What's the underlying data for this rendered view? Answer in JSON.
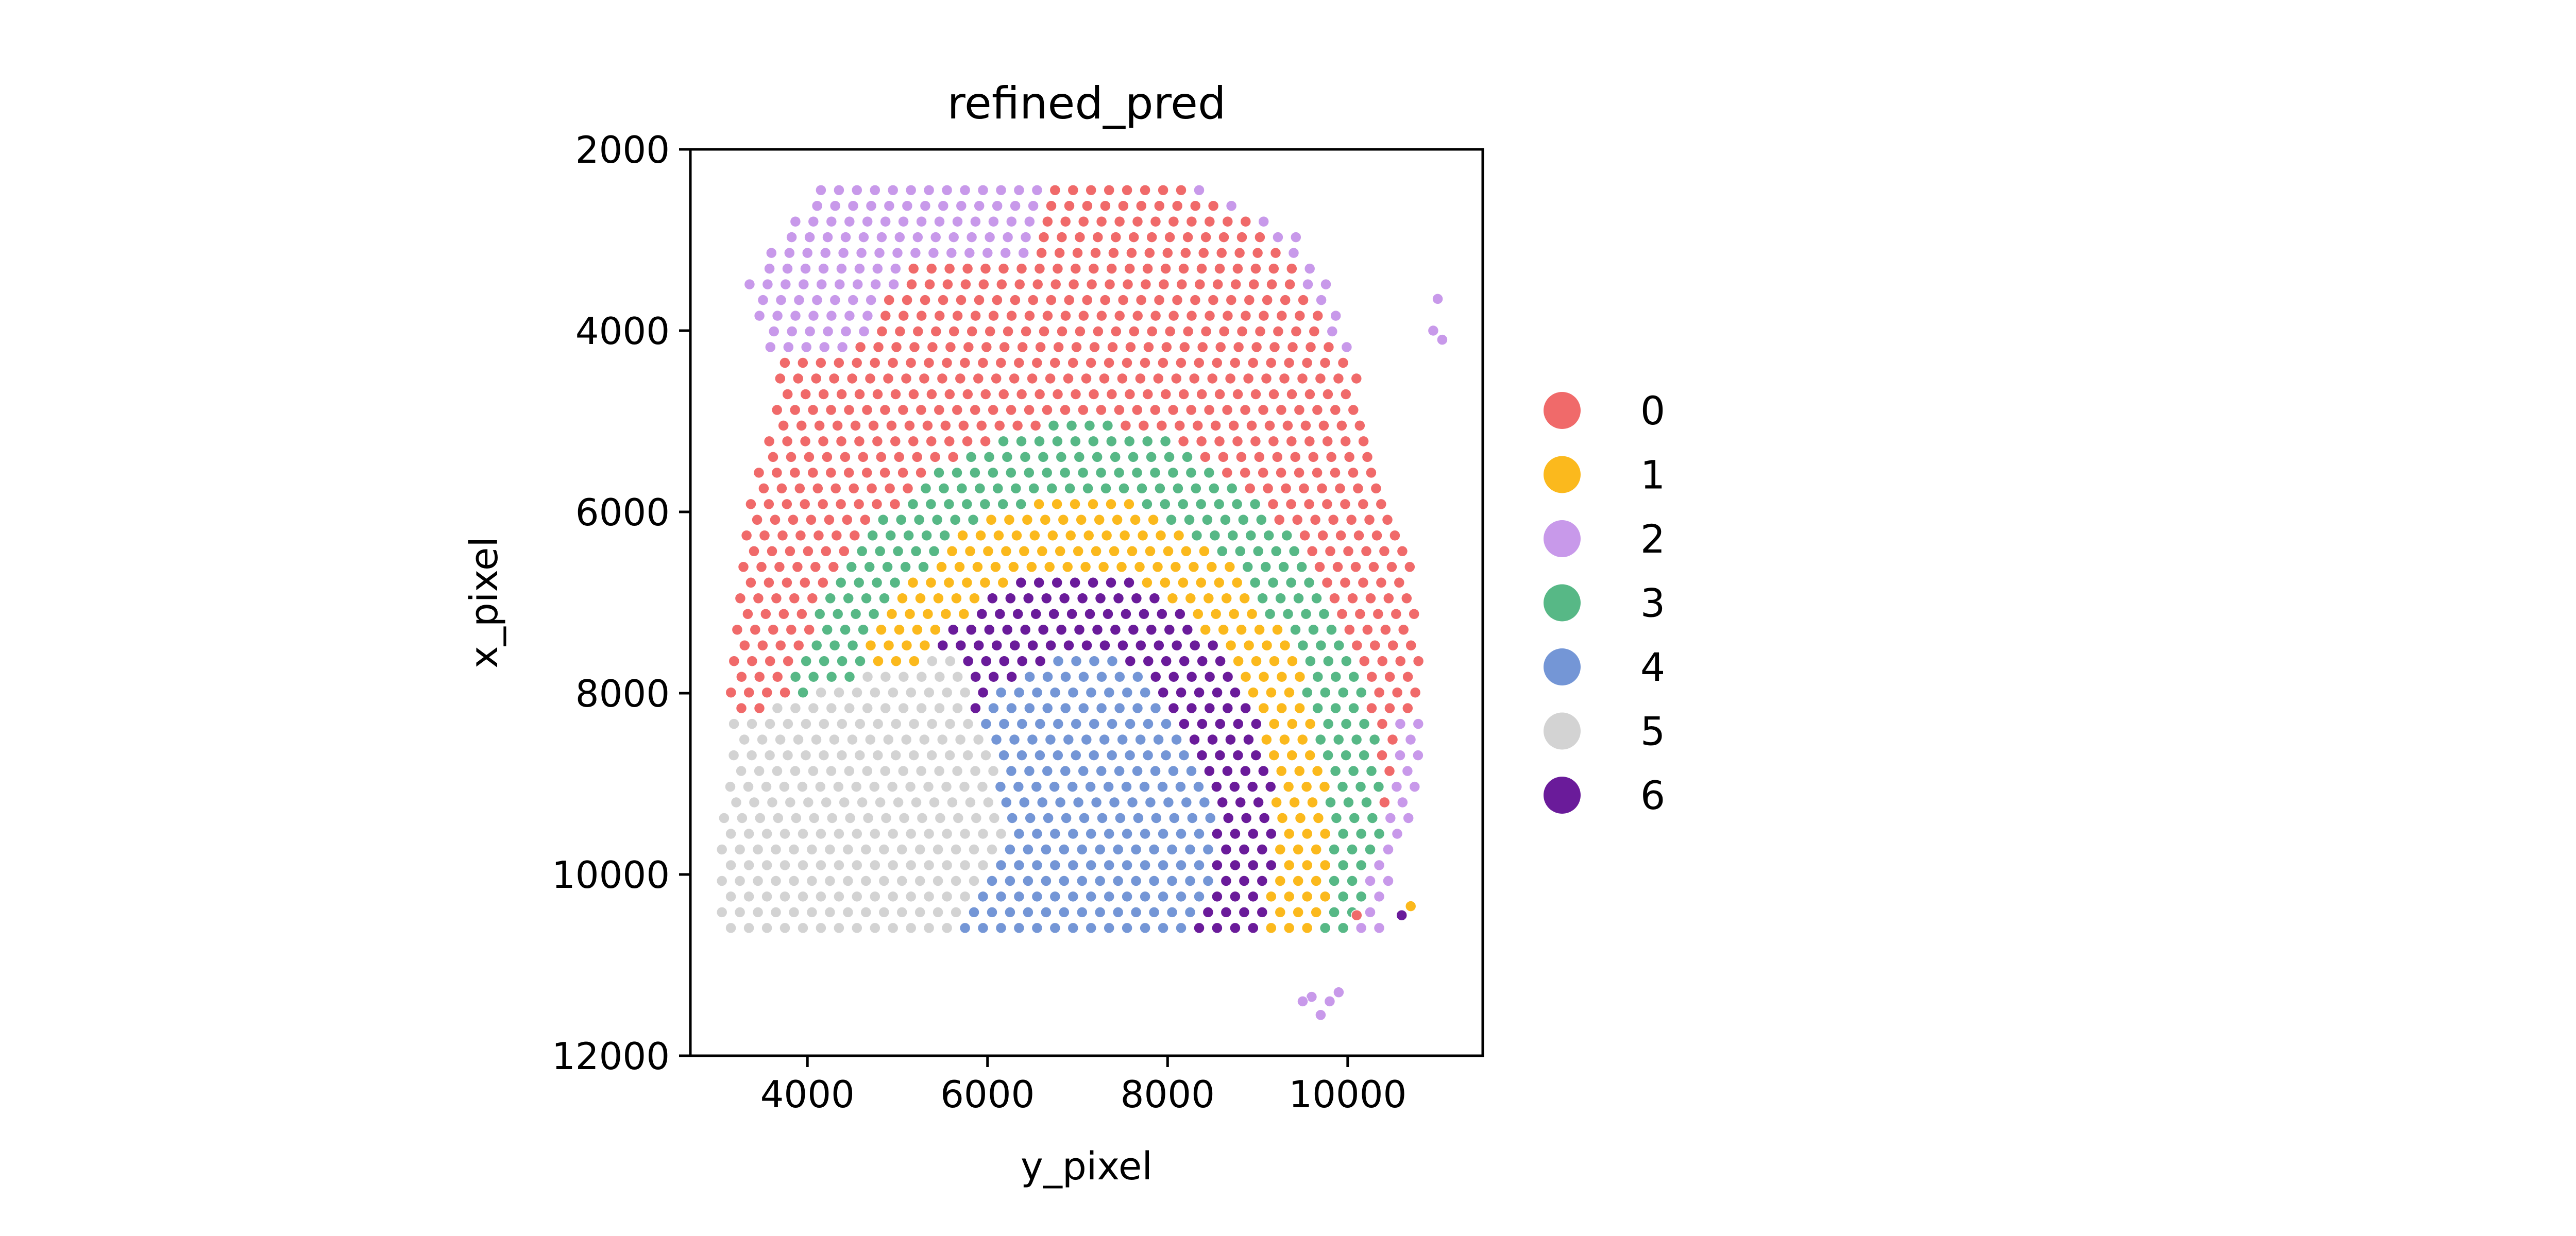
{
  "chart_data": {
    "type": "scatter",
    "title": "refined_pred",
    "xlabel": "y_pixel",
    "ylabel": "x_pixel",
    "xlim": [
      2700,
      11500
    ],
    "ylim": [
      12000,
      2000
    ],
    "y_inverted": true,
    "xticks": [
      "4000",
      "6000",
      "8000",
      "10000"
    ],
    "xtick_values": [
      4000,
      6000,
      8000,
      10000
    ],
    "yticks": [
      "2000",
      "4000",
      "6000",
      "8000",
      "10000",
      "12000"
    ],
    "ytick_values": [
      2000,
      4000,
      6000,
      8000,
      10000,
      12000
    ],
    "grid": false,
    "legend_placement": "right",
    "spot_spacing": 200,
    "series": [
      {
        "name": "0",
        "color": "#f06a6a",
        "description_region": "outer arc band (right side and top)"
      },
      {
        "name": "1",
        "color": "#fbb91d",
        "description_region": "inner-middle arc band"
      },
      {
        "name": "2",
        "color": "#c899ea",
        "description_region": "top-left corner and scattered edge spots"
      },
      {
        "name": "3",
        "color": "#57b886",
        "description_region": "middle arc band"
      },
      {
        "name": "4",
        "color": "#7496d6",
        "description_region": "lower-left band"
      },
      {
        "name": "5",
        "color": "#d3d3d3",
        "description_region": "bottom-left block"
      },
      {
        "name": "6",
        "color": "#6a1b9a",
        "description_region": "innermost arc band"
      }
    ]
  }
}
